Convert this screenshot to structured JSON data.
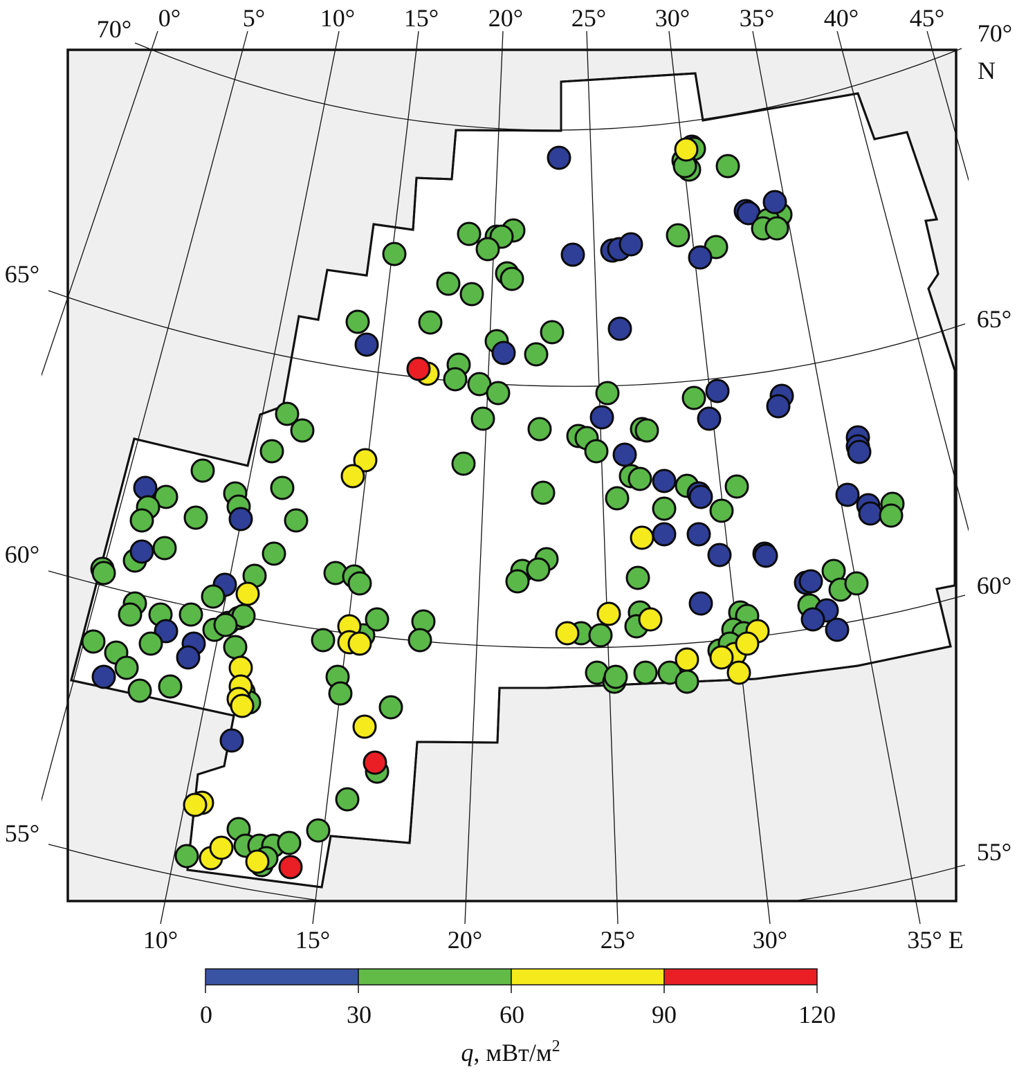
{
  "map": {
    "top_labels": [
      "70°",
      "0°",
      "5°",
      "10°",
      "15°",
      "20°",
      "25°",
      "30°",
      "35°",
      "40°",
      "45°",
      "70°"
    ],
    "north_label": "N",
    "left_labels": [
      "65°",
      "60°",
      "55°"
    ],
    "right_labels": [
      "65°",
      "60°",
      "55°"
    ],
    "bottom_labels": [
      "10°",
      "15°",
      "20°",
      "25°",
      "30°",
      "35° E"
    ],
    "colors": {
      "outside_region": "#efefef",
      "study_region": "#ffffff",
      "grid": "#111111"
    }
  },
  "colorbar": {
    "ticks": [
      "0",
      "30",
      "60",
      "90",
      "120"
    ],
    "label_var": "q",
    "label_unit": ", мВт/м",
    "label_sup": "2",
    "classes": [
      {
        "min": 0,
        "max": 30,
        "color": "#3a54a4"
      },
      {
        "min": 30,
        "max": 60,
        "color": "#62bb46"
      },
      {
        "min": 60,
        "max": 90,
        "color": "#f5ea1c"
      },
      {
        "min": 90,
        "max": 120,
        "color": "#ea1f26"
      }
    ]
  }
}
